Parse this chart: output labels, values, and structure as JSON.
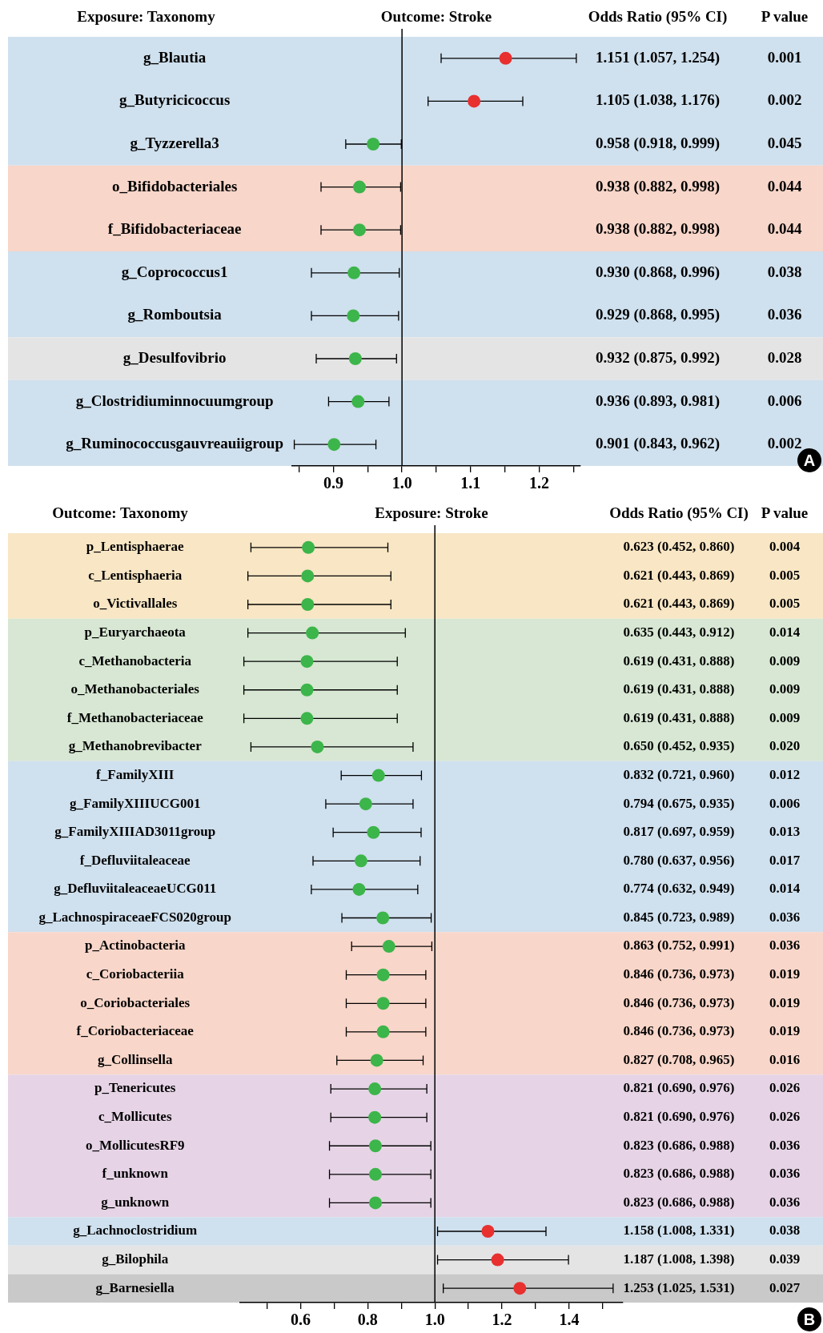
{
  "chart_data": [
    {
      "type": "scatter",
      "orientation": "horizontal",
      "title": "Outcome: Stroke",
      "ylabel": "Exposure: Taxonomy",
      "categories": [
        "g_Blautia",
        "g_Butyricicoccus",
        "g_Tyzzerella3",
        "o_Bifidobacteriales",
        "f_Bifidobacteriaceae",
        "g_Coprococcus1",
        "g_Romboutsia",
        "g_Desulfovibrio",
        "g_Clostridiuminnocuumgroup",
        "g_Ruminococcusgauvreauiigroup"
      ],
      "values": [
        1.151,
        1.105,
        0.958,
        0.938,
        0.938,
        0.93,
        0.929,
        0.932,
        0.936,
        0.901
      ],
      "errors": [
        [
          1.057,
          1.254
        ],
        [
          1.038,
          1.176
        ],
        [
          0.918,
          0.999
        ],
        [
          0.882,
          0.998
        ],
        [
          0.882,
          0.998
        ],
        [
          0.868,
          0.996
        ],
        [
          0.868,
          0.995
        ],
        [
          0.875,
          0.992
        ],
        [
          0.893,
          0.981
        ],
        [
          0.843,
          0.962
        ]
      ],
      "colors": [
        "#e8302f",
        "#e8302f",
        "#3cb54a",
        "#3cb54a",
        "#3cb54a",
        "#3cb54a",
        "#3cb54a",
        "#3cb54a",
        "#3cb54a",
        "#3cb54a"
      ],
      "value_labels": [
        "1.151 (1.057, 1.254)",
        "1.105 (1.038, 1.176)",
        "0.958 (0.918, 0.999)",
        "0.938 (0.882, 0.998)",
        "0.938 (0.882, 0.998)",
        "0.930 (0.868, 0.996)",
        "0.929 (0.868, 0.995)",
        "0.932 (0.875, 0.992)",
        "0.936 (0.893, 0.981)",
        "0.901 (0.843, 0.962)"
      ],
      "xlim": [
        0.84,
        1.26
      ],
      "xticks": [
        {
          "value": 0.85,
          "label": null
        },
        0.9,
        {
          "value": 0.95,
          "label": null
        },
        {
          "value": 1,
          "label": "1.0"
        },
        {
          "value": 1.05,
          "label": null
        },
        1.1,
        {
          "value": 1.15,
          "label": null
        },
        1.2,
        {
          "value": 1.25,
          "label": null
        }
      ],
      "ref_lines": [
        {
          "axis": "x",
          "value": 1.0,
          "color": "#000000"
        }
      ],
      "bands": [
        {
          "axis": "y",
          "from": "g_Blautia",
          "to": "g_Tyzzerella3",
          "color": "#cfe0ee"
        },
        {
          "axis": "y",
          "from": "o_Bifidobacteriales",
          "to": "f_Bifidobacteriaceae",
          "color": "#f8d6c9"
        },
        {
          "axis": "y",
          "from": "g_Coprococcus1",
          "to": "g_Romboutsia",
          "color": "#cfe0ee"
        },
        {
          "axis": "y",
          "from": "g_Desulfovibrio",
          "to": "g_Desulfovibrio",
          "color": "#e4e4e4"
        },
        {
          "axis": "y",
          "from": "g_Clostridiuminnocuumgroup",
          "to": "g_Ruminococcusgauvreauiigroup",
          "color": "#cfe0ee"
        }
      ],
      "annotations": [
        "Odds Ratio (95% CI)",
        "P value",
        "A",
        "0.001",
        "0.002",
        "0.045",
        "0.044",
        "0.044",
        "0.038",
        "0.036",
        "0.028",
        "0.006",
        "0.002"
      ],
      "marker": "circle",
      "grid": false,
      "legend": false
    },
    {
      "type": "scatter",
      "orientation": "horizontal",
      "title": "Exposure: Stroke",
      "ylabel": "Outcome: Taxonomy",
      "categories": [
        "p_Lentisphaerae",
        "c_Lentisphaeria",
        "o_Victivallales",
        "p_Euryarchaeota",
        "c_Methanobacteria",
        "o_Methanobacteriales",
        "f_Methanobacteriaceae",
        "g_Methanobrevibacter",
        "f_FamilyXIII",
        "g_FamilyXIIIUCG001",
        "g_FamilyXIIIAD3011group",
        "f_Defluviitaleaceae",
        "g_DefluviitaleaceaeUCG011",
        "g_LachnospiraceaeFCS020group",
        "p_Actinobacteria",
        "c_Coriobacteriia",
        "o_Coriobacteriales",
        "f_Coriobacteriaceae",
        "g_Collinsella",
        "p_Tenericutes",
        "c_Mollicutes",
        "o_MollicutesRF9",
        "f_unknown",
        "g_unknown",
        "g_Lachnoclostridium",
        "g_Bilophila",
        "g_Barnesiella"
      ],
      "values": [
        0.623,
        0.621,
        0.621,
        0.635,
        0.619,
        0.619,
        0.619,
        0.65,
        0.832,
        0.794,
        0.817,
        0.78,
        0.774,
        0.845,
        0.863,
        0.846,
        0.846,
        0.846,
        0.827,
        0.821,
        0.821,
        0.823,
        0.823,
        0.823,
        1.158,
        1.187,
        1.253
      ],
      "errors": [
        [
          0.452,
          0.86
        ],
        [
          0.443,
          0.869
        ],
        [
          0.443,
          0.869
        ],
        [
          0.443,
          0.912
        ],
        [
          0.431,
          0.888
        ],
        [
          0.431,
          0.888
        ],
        [
          0.431,
          0.888
        ],
        [
          0.452,
          0.935
        ],
        [
          0.721,
          0.96
        ],
        [
          0.675,
          0.935
        ],
        [
          0.697,
          0.959
        ],
        [
          0.637,
          0.956
        ],
        [
          0.632,
          0.949
        ],
        [
          0.723,
          0.989
        ],
        [
          0.752,
          0.991
        ],
        [
          0.736,
          0.973
        ],
        [
          0.736,
          0.973
        ],
        [
          0.736,
          0.973
        ],
        [
          0.708,
          0.965
        ],
        [
          0.69,
          0.976
        ],
        [
          0.69,
          0.976
        ],
        [
          0.686,
          0.988
        ],
        [
          0.686,
          0.988
        ],
        [
          0.686,
          0.988
        ],
        [
          1.008,
          1.331
        ],
        [
          1.008,
          1.398
        ],
        [
          1.025,
          1.531
        ]
      ],
      "colors": [
        "#3cb54a",
        "#3cb54a",
        "#3cb54a",
        "#3cb54a",
        "#3cb54a",
        "#3cb54a",
        "#3cb54a",
        "#3cb54a",
        "#3cb54a",
        "#3cb54a",
        "#3cb54a",
        "#3cb54a",
        "#3cb54a",
        "#3cb54a",
        "#3cb54a",
        "#3cb54a",
        "#3cb54a",
        "#3cb54a",
        "#3cb54a",
        "#3cb54a",
        "#3cb54a",
        "#3cb54a",
        "#3cb54a",
        "#3cb54a",
        "#e8302f",
        "#e8302f",
        "#e8302f"
      ],
      "value_labels": [
        "0.623 (0.452, 0.860)",
        "0.621 (0.443, 0.869)",
        "0.621 (0.443, 0.869)",
        "0.635 (0.443, 0.912)",
        "0.619 (0.431, 0.888)",
        "0.619 (0.431, 0.888)",
        "0.619 (0.431, 0.888)",
        "0.650 (0.452, 0.935)",
        "0.832 (0.721, 0.960)",
        "0.794 (0.675, 0.935)",
        "0.817 (0.697, 0.959)",
        "0.780 (0.637, 0.956)",
        "0.774 (0.632, 0.949)",
        "0.845 (0.723, 0.989)",
        "0.863 (0.752, 0.991)",
        "0.846 (0.736, 0.973)",
        "0.846 (0.736, 0.973)",
        "0.846 (0.736, 0.973)",
        "0.827 (0.708, 0.965)",
        "0.821 (0.690, 0.976)",
        "0.821 (0.690, 0.976)",
        "0.823 (0.686, 0.988)",
        "0.823 (0.686, 0.988)",
        "0.823 (0.686, 0.988)",
        "1.158 (1.008, 1.331)",
        "1.187 (1.008, 1.398)",
        "1.253 (1.025, 1.531)"
      ],
      "xlim": [
        0.42,
        1.56
      ],
      "xticks": [
        {
          "value": 0.5,
          "label": null
        },
        0.6,
        {
          "value": 0.7,
          "label": null
        },
        0.8,
        {
          "value": 0.9,
          "label": null
        },
        {
          "value": 1,
          "label": "1.0"
        },
        {
          "value": 1.1,
          "label": null
        },
        1.2,
        {
          "value": 1.3,
          "label": null
        },
        1.4,
        {
          "value": 1.5,
          "label": null
        }
      ],
      "ref_lines": [
        {
          "axis": "x",
          "value": 1.0,
          "color": "#000000"
        }
      ],
      "bands": [
        {
          "axis": "y",
          "from": "p_Lentisphaerae",
          "to": "o_Victivallales",
          "color": "#f8e6c4"
        },
        {
          "axis": "y",
          "from": "p_Euryarchaeota",
          "to": "g_Methanobrevibacter",
          "color": "#d7e7d3"
        },
        {
          "axis": "y",
          "from": "f_FamilyXIII",
          "to": "g_LachnospiraceaeFCS020group",
          "color": "#cfe0ee"
        },
        {
          "axis": "y",
          "from": "p_Actinobacteria",
          "to": "g_Collinsella",
          "color": "#f8d6c9"
        },
        {
          "axis": "y",
          "from": "p_Tenericutes",
          "to": "g_unknown",
          "color": "#e6d4e6"
        },
        {
          "axis": "y",
          "from": "g_Lachnoclostridium",
          "to": "g_Lachnoclostridium",
          "color": "#cfe0ee"
        },
        {
          "axis": "y",
          "from": "g_Bilophila",
          "to": "g_Bilophila",
          "color": "#e4e4e4"
        },
        {
          "axis": "y",
          "from": "g_Barnesiella",
          "to": "g_Barnesiella",
          "color": "#c9c9c9"
        }
      ],
      "annotations": [
        "Odds Ratio (95% CI)",
        "P value",
        "B",
        "0.004",
        "0.005",
        "0.005",
        "0.014",
        "0.009",
        "0.009",
        "0.009",
        "0.020",
        "0.012",
        "0.006",
        "0.013",
        "0.017",
        "0.014",
        "0.036",
        "0.036",
        "0.019",
        "0.019",
        "0.019",
        "0.016",
        "0.026",
        "0.026",
        "0.036",
        "0.036",
        "0.036",
        "0.038",
        "0.039",
        "0.027"
      ],
      "marker": "circle",
      "grid": false,
      "legend": false
    }
  ]
}
